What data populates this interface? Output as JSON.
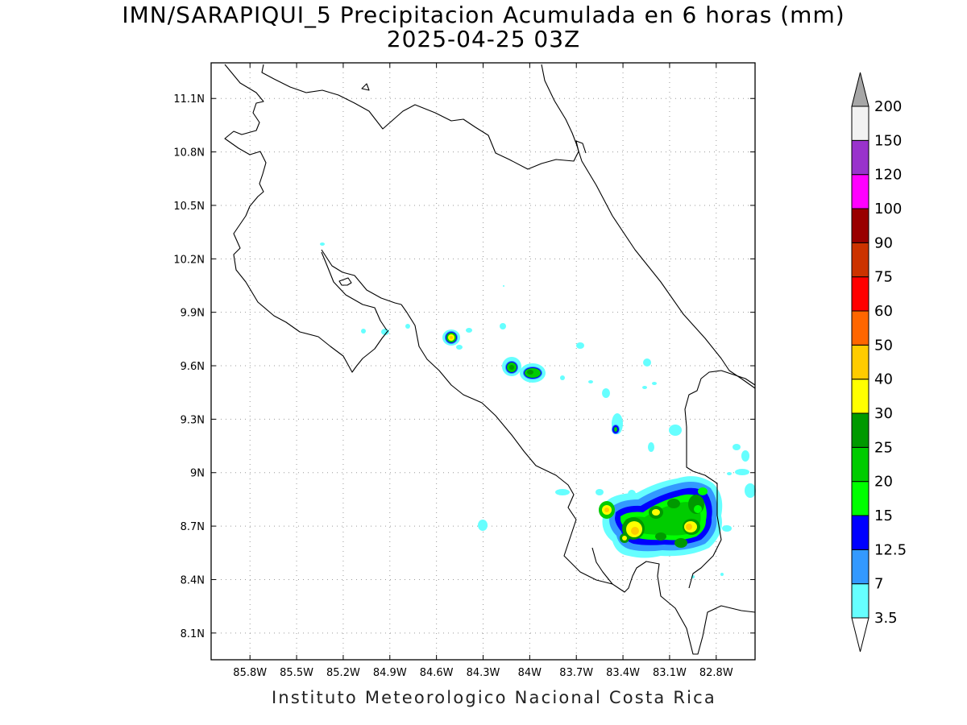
{
  "title": {
    "line1": "IMN/SARAPIQUI_5 Precipitacion Acumulada en 6 horas (mm)",
    "line2": "2025-04-25 03Z"
  },
  "footer": "Instituto Meteorologico Nacional Costa Rica",
  "map": {
    "lon_range": [
      -86.05,
      -82.55
    ],
    "lat_range": [
      7.95,
      11.3
    ],
    "lat_ticks": [
      {
        "value": 11.1,
        "label": "11.1N"
      },
      {
        "value": 10.8,
        "label": "10.8N"
      },
      {
        "value": 10.5,
        "label": "10.5N"
      },
      {
        "value": 10.2,
        "label": "10.2N"
      },
      {
        "value": 9.9,
        "label": "9.9N"
      },
      {
        "value": 9.6,
        "label": "9.6N"
      },
      {
        "value": 9.3,
        "label": "9.3N"
      },
      {
        "value": 9.0,
        "label": "9N"
      },
      {
        "value": 8.7,
        "label": "8.7N"
      },
      {
        "value": 8.4,
        "label": "8.4N"
      },
      {
        "value": 8.1,
        "label": "8.1N"
      }
    ],
    "lon_ticks": [
      {
        "value": -85.8,
        "label": "85.8W"
      },
      {
        "value": -85.5,
        "label": "85.5W"
      },
      {
        "value": -85.2,
        "label": "85.2W"
      },
      {
        "value": -84.9,
        "label": "84.9W"
      },
      {
        "value": -84.6,
        "label": "84.6W"
      },
      {
        "value": -84.3,
        "label": "84.3W"
      },
      {
        "value": -84.0,
        "label": "84W"
      },
      {
        "value": -83.7,
        "label": "83.7W"
      },
      {
        "value": -83.4,
        "label": "83.4W"
      },
      {
        "value": -83.1,
        "label": "83.1W"
      },
      {
        "value": -82.8,
        "label": "82.8W"
      }
    ],
    "grid": "dotted"
  },
  "colorbar": {
    "labels": [
      "3.5",
      "7",
      "12.5",
      "15",
      "20",
      "25",
      "30",
      "40",
      "50",
      "60",
      "75",
      "90",
      "100",
      "120",
      "150",
      "200"
    ],
    "colors": [
      "#66ffff",
      "#3399ff",
      "#0000ff",
      "#00ff00",
      "#00cc00",
      "#009900",
      "#ffff00",
      "#ffcc00",
      "#ff6600",
      "#ff0000",
      "#cc3300",
      "#990000",
      "#ff00ff",
      "#9933cc",
      "#f2f2f2"
    ],
    "below_color": "#ffffff",
    "above_color": "#a6a6a6"
  }
}
